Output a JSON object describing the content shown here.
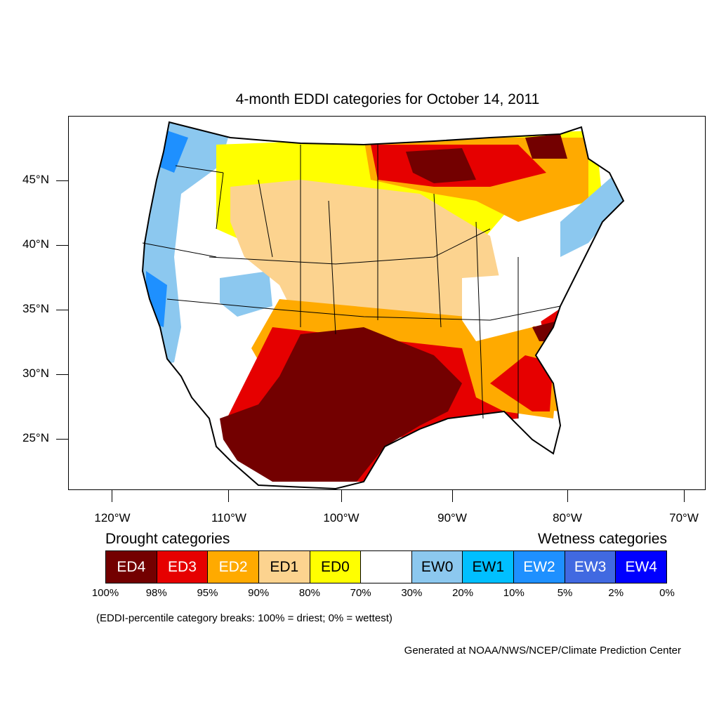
{
  "title": "4-month EDDI categories for October 14, 2011",
  "lat_labels": [
    "45°N",
    "40°N",
    "35°N",
    "30°N",
    "25°N"
  ],
  "lon_labels": [
    "120°W",
    "110°W",
    "100°W",
    "90°W",
    "80°W",
    "70°W"
  ],
  "legend": {
    "drought_heading": "Drought categories",
    "wetness_heading": "Wetness categories",
    "categories": [
      {
        "label": "ED4",
        "color": "#730000",
        "text_color": "#ffffff"
      },
      {
        "label": "ED3",
        "color": "#e60000",
        "text_color": "#ffffff"
      },
      {
        "label": "ED2",
        "color": "#ffaa00",
        "text_color": "#ffffff"
      },
      {
        "label": "ED1",
        "color": "#fcd38f",
        "text_color": "#000000"
      },
      {
        "label": "ED0",
        "color": "#ffff00",
        "text_color": "#000000"
      },
      {
        "label": "",
        "color": "#ffffff",
        "text_color": "#000000"
      },
      {
        "label": "EW0",
        "color": "#8cc8ef",
        "text_color": "#000000"
      },
      {
        "label": "EW1",
        "color": "#00bfff",
        "text_color": "#000000"
      },
      {
        "label": "EW2",
        "color": "#1e90ff",
        "text_color": "#ffffff"
      },
      {
        "label": "EW3",
        "color": "#4169e1",
        "text_color": "#ffffff"
      },
      {
        "label": "EW4",
        "color": "#0000ff",
        "text_color": "#ffffff"
      }
    ],
    "breaks": [
      "100%",
      "98%",
      "95%",
      "90%",
      "80%",
      "70%",
      "30%",
      "20%",
      "10%",
      "5%",
      "2%",
      "0%"
    ]
  },
  "note": "(EDDI-percentile category breaks: 100% = driest; 0% = wettest)",
  "credit": "Generated at NOAA/NWS/NCEP/Climate Prediction Center"
}
